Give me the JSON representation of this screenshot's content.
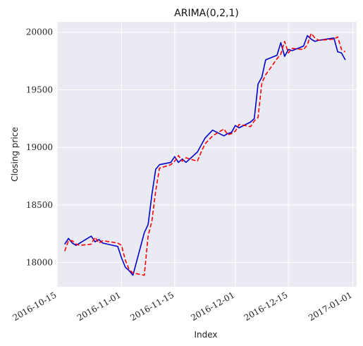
{
  "chart_data": {
    "type": "line",
    "title": "ARIMA(0,2,1)",
    "xlabel": "Index",
    "ylabel": "Closing price",
    "x_axis_type": "date",
    "xlim": [
      "2016-10-15",
      "2017-01-02"
    ],
    "ylim": [
      17790,
      20090
    ],
    "x_ticks": [
      "2016-10-15",
      "2016-11-01",
      "2016-11-15",
      "2016-12-01",
      "2016-12-15",
      "2017-01-01"
    ],
    "y_ticks": [
      18000,
      18500,
      19000,
      19500,
      20000
    ],
    "grid": true,
    "background": "#eaeaf2",
    "series": [
      {
        "color": "#0000cc",
        "dash": "solid",
        "points": [
          [
            "2016-10-17",
            18160
          ],
          [
            "2016-10-18",
            18210
          ],
          [
            "2016-10-19",
            18170
          ],
          [
            "2016-10-20",
            18150
          ],
          [
            "2016-10-21",
            18170
          ],
          [
            "2016-10-24",
            18230
          ],
          [
            "2016-10-25",
            18180
          ],
          [
            "2016-10-26",
            18200
          ],
          [
            "2016-10-27",
            18170
          ],
          [
            "2016-10-31",
            18140
          ],
          [
            "2016-11-01",
            18040
          ],
          [
            "2016-11-02",
            17960
          ],
          [
            "2016-11-03",
            17930
          ],
          [
            "2016-11-04",
            17890
          ],
          [
            "2016-11-07",
            18260
          ],
          [
            "2016-11-08",
            18330
          ],
          [
            "2016-11-09",
            18590
          ],
          [
            "2016-11-10",
            18810
          ],
          [
            "2016-11-11",
            18850
          ],
          [
            "2016-11-14",
            18870
          ],
          [
            "2016-11-15",
            18920
          ],
          [
            "2016-11-16",
            18870
          ],
          [
            "2016-11-17",
            18900
          ],
          [
            "2016-11-18",
            18870
          ],
          [
            "2016-11-21",
            18960
          ],
          [
            "2016-11-22",
            19020
          ],
          [
            "2016-11-23",
            19080
          ],
          [
            "2016-11-25",
            19150
          ],
          [
            "2016-11-28",
            19100
          ],
          [
            "2016-11-29",
            19120
          ],
          [
            "2016-11-30",
            19130
          ],
          [
            "2016-12-01",
            19190
          ],
          [
            "2016-12-02",
            19170
          ],
          [
            "2016-12-05",
            19220
          ],
          [
            "2016-12-06",
            19250
          ],
          [
            "2016-12-07",
            19550
          ],
          [
            "2016-12-08",
            19610
          ],
          [
            "2016-12-09",
            19760
          ],
          [
            "2016-12-12",
            19800
          ],
          [
            "2016-12-13",
            19910
          ],
          [
            "2016-12-14",
            19790
          ],
          [
            "2016-12-15",
            19850
          ],
          [
            "2016-12-16",
            19840
          ],
          [
            "2016-12-19",
            19880
          ],
          [
            "2016-12-20",
            19970
          ],
          [
            "2016-12-21",
            19940
          ],
          [
            "2016-12-22",
            19920
          ],
          [
            "2016-12-23",
            19930
          ],
          [
            "2016-12-27",
            19950
          ],
          [
            "2016-12-28",
            19830
          ],
          [
            "2016-12-29",
            19820
          ],
          [
            "2016-12-30",
            19760
          ]
        ]
      },
      {
        "color": "#ff0000",
        "dash": "dashed",
        "points": [
          [
            "2016-10-17",
            18100
          ],
          [
            "2016-10-18",
            18190
          ],
          [
            "2016-10-19",
            18190
          ],
          [
            "2016-10-20",
            18160
          ],
          [
            "2016-10-21",
            18150
          ],
          [
            "2016-10-24",
            18160
          ],
          [
            "2016-10-25",
            18220
          ],
          [
            "2016-10-26",
            18170
          ],
          [
            "2016-10-27",
            18190
          ],
          [
            "2016-10-31",
            18170
          ],
          [
            "2016-11-01",
            18150
          ],
          [
            "2016-11-02",
            18020
          ],
          [
            "2016-11-03",
            17940
          ],
          [
            "2016-11-04",
            17910
          ],
          [
            "2016-11-07",
            17890
          ],
          [
            "2016-11-08",
            18230
          ],
          [
            "2016-11-09",
            18360
          ],
          [
            "2016-11-10",
            18620
          ],
          [
            "2016-11-11",
            18820
          ],
          [
            "2016-11-14",
            18850
          ],
          [
            "2016-11-15",
            18880
          ],
          [
            "2016-11-16",
            18930
          ],
          [
            "2016-11-17",
            18880
          ],
          [
            "2016-11-18",
            18910
          ],
          [
            "2016-11-21",
            18880
          ],
          [
            "2016-11-22",
            18960
          ],
          [
            "2016-11-23",
            19030
          ],
          [
            "2016-11-25",
            19100
          ],
          [
            "2016-11-28",
            19160
          ],
          [
            "2016-11-29",
            19110
          ],
          [
            "2016-11-30",
            19120
          ],
          [
            "2016-12-01",
            19140
          ],
          [
            "2016-12-02",
            19200
          ],
          [
            "2016-12-05",
            19180
          ],
          [
            "2016-12-06",
            19230
          ],
          [
            "2016-12-07",
            19260
          ],
          [
            "2016-12-08",
            19560
          ],
          [
            "2016-12-09",
            19630
          ],
          [
            "2016-12-12",
            19770
          ],
          [
            "2016-12-13",
            19810
          ],
          [
            "2016-12-14",
            19920
          ],
          [
            "2016-12-15",
            19820
          ],
          [
            "2016-12-16",
            19860
          ],
          [
            "2016-12-19",
            19850
          ],
          [
            "2016-12-20",
            19890
          ],
          [
            "2016-12-21",
            19990
          ],
          [
            "2016-12-22",
            19950
          ],
          [
            "2016-12-23",
            19930
          ],
          [
            "2016-12-27",
            19940
          ],
          [
            "2016-12-28",
            19960
          ],
          [
            "2016-12-29",
            19850
          ],
          [
            "2016-12-30",
            19830
          ]
        ]
      }
    ]
  }
}
